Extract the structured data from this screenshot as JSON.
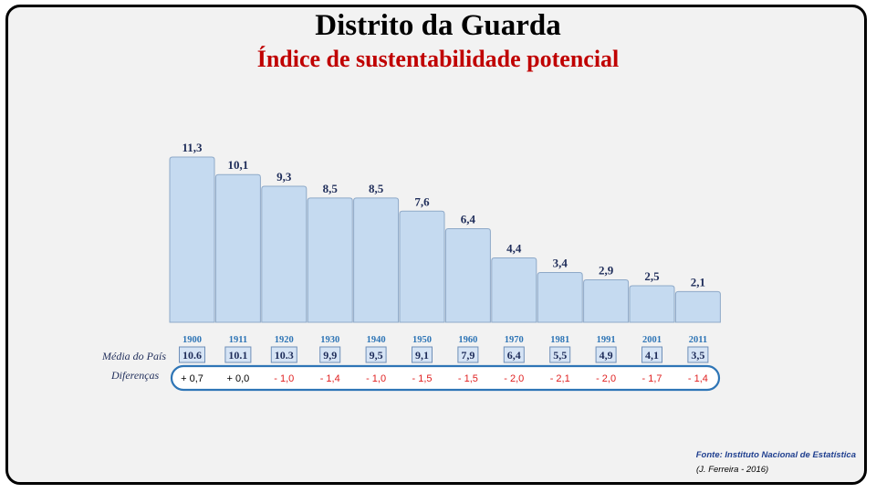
{
  "title": "Distrito da Guarda",
  "subtitle": "Índice de sustentabilidade potencial",
  "row_labels": {
    "media": "Média do País",
    "diferencas": "Diferenças"
  },
  "source": "Fonte: Instituto Nacional de Estatística",
  "author": "(J. Ferreira - 2016)",
  "colors": {
    "bar_fill": "#c5daf0",
    "bar_stroke": "#8ea9c8",
    "value_label": "#1f2d5a",
    "year_label": "#2e75b6",
    "diff_positive": "#000000",
    "diff_negative": "#e02020",
    "oval_stroke": "#2e75b6",
    "title": "#000000",
    "subtitle": "#c00000"
  },
  "chart_data": {
    "type": "bar",
    "title": "Distrito da Guarda",
    "subtitle": "Índice de sustentabilidade potencial",
    "categories": [
      "1900",
      "1911",
      "1920",
      "1930",
      "1940",
      "1950",
      "1960",
      "1970",
      "1981",
      "1991",
      "2001",
      "2011"
    ],
    "values": [
      11.3,
      10.1,
      9.3,
      8.5,
      8.5,
      7.6,
      6.4,
      4.4,
      3.4,
      2.9,
      2.5,
      2.1
    ],
    "value_labels": [
      "11,3",
      "10,1",
      "9,3",
      "8,5",
      "8,5",
      "7,6",
      "6,4",
      "4,4",
      "3,4",
      "2,9",
      "2,5",
      "2,1"
    ],
    "national_average": {
      "name": "Média do País",
      "labels": [
        "10.6",
        "10.1",
        "10.3",
        "9,9",
        "9,5",
        "9,1",
        "7,9",
        "6,4",
        "5,5",
        "4,9",
        "4,1",
        "3,5"
      ]
    },
    "differences": {
      "name": "Diferenças",
      "labels": [
        "+ 0,7",
        "+ 0,0",
        "- 1,0",
        "- 1,4",
        "- 1,0",
        "- 1,5",
        "- 1,5",
        "- 2,0",
        "- 2,1",
        "- 2,0",
        "- 1,7",
        "- 1,4"
      ],
      "signs": [
        "pos",
        "pos",
        "neg",
        "neg",
        "neg",
        "neg",
        "neg",
        "neg",
        "neg",
        "neg",
        "neg",
        "neg"
      ]
    },
    "ylim": [
      0,
      11.3
    ],
    "grid": false,
    "legend": "none"
  }
}
